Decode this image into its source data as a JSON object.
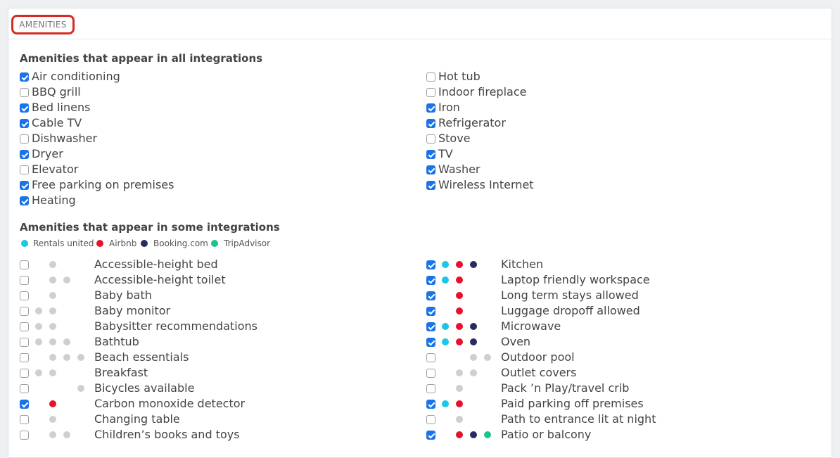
{
  "tab_label": "AMENITIES",
  "all_section": {
    "title": "Amenities that appear in all integrations",
    "left": [
      {
        "label": "Air conditioning",
        "checked": true
      },
      {
        "label": "BBQ grill",
        "checked": false
      },
      {
        "label": "Bed linens",
        "checked": true
      },
      {
        "label": "Cable TV",
        "checked": true
      },
      {
        "label": "Dishwasher",
        "checked": false
      },
      {
        "label": "Dryer",
        "checked": true
      },
      {
        "label": "Elevator",
        "checked": false
      },
      {
        "label": "Free parking on premises",
        "checked": true
      },
      {
        "label": "Heating",
        "checked": true
      }
    ],
    "right": [
      {
        "label": "Hot tub",
        "checked": false
      },
      {
        "label": "Indoor fireplace",
        "checked": false
      },
      {
        "label": "Iron",
        "checked": true
      },
      {
        "label": "Refrigerator",
        "checked": true
      },
      {
        "label": "Stove",
        "checked": false
      },
      {
        "label": "TV",
        "checked": true
      },
      {
        "label": "Washer",
        "checked": true
      },
      {
        "label": "Wireless Internet",
        "checked": true
      }
    ]
  },
  "some_section": {
    "title": "Amenities that appear in some integrations",
    "legend": [
      {
        "key": "r",
        "label": "Rentals united",
        "color": "#1bc6e6"
      },
      {
        "key": "a",
        "label": "Airbnb",
        "color": "#e8102b"
      },
      {
        "key": "b",
        "label": "Booking.com",
        "color": "#262b61"
      },
      {
        "key": "t",
        "label": "TripAdvisor",
        "color": "#1ac58c"
      }
    ],
    "inactive_color": "#cfcfcf",
    "left": [
      {
        "label": "Accessible-height bed",
        "checked": false,
        "dots": [
          null,
          "i",
          null,
          null
        ]
      },
      {
        "label": "Accessible-height toilet",
        "checked": false,
        "dots": [
          null,
          "i",
          "i",
          null
        ]
      },
      {
        "label": "Baby bath",
        "checked": false,
        "dots": [
          null,
          "i",
          null,
          null
        ]
      },
      {
        "label": "Baby monitor",
        "checked": false,
        "dots": [
          "i",
          "i",
          null,
          null
        ]
      },
      {
        "label": "Babysitter recommendations",
        "checked": false,
        "dots": [
          "i",
          "i",
          null,
          null
        ]
      },
      {
        "label": "Bathtub",
        "checked": false,
        "dots": [
          "i",
          "i",
          "i",
          null
        ]
      },
      {
        "label": "Beach essentials",
        "checked": false,
        "dots": [
          null,
          "i",
          "i",
          "i"
        ]
      },
      {
        "label": "Breakfast",
        "checked": false,
        "dots": [
          "i",
          "i",
          null,
          null
        ]
      },
      {
        "label": "Bicycles available",
        "checked": false,
        "dots": [
          null,
          null,
          null,
          "i"
        ]
      },
      {
        "label": "Carbon monoxide detector",
        "checked": true,
        "dots": [
          null,
          "a",
          null,
          null
        ]
      },
      {
        "label": "Changing table",
        "checked": false,
        "dots": [
          null,
          "i",
          null,
          null
        ]
      },
      {
        "label": "Children’s books and toys",
        "checked": false,
        "dots": [
          null,
          "i",
          "i",
          null
        ]
      }
    ],
    "right": [
      {
        "label": "Kitchen",
        "checked": true,
        "dots": [
          "r",
          "a",
          "b",
          null
        ]
      },
      {
        "label": "Laptop friendly workspace",
        "checked": true,
        "dots": [
          "r",
          "a",
          null,
          null
        ]
      },
      {
        "label": "Long term stays allowed",
        "checked": true,
        "dots": [
          null,
          "a",
          null,
          null
        ]
      },
      {
        "label": "Luggage dropoff allowed",
        "checked": true,
        "dots": [
          null,
          "a",
          null,
          null
        ]
      },
      {
        "label": "Microwave",
        "checked": true,
        "dots": [
          "r",
          "a",
          "b",
          null
        ]
      },
      {
        "label": "Oven",
        "checked": true,
        "dots": [
          "r",
          "a",
          "b",
          null
        ]
      },
      {
        "label": "Outdoor pool",
        "checked": false,
        "dots": [
          null,
          null,
          "i",
          "i"
        ]
      },
      {
        "label": "Outlet covers",
        "checked": false,
        "dots": [
          null,
          "i",
          "i",
          null
        ]
      },
      {
        "label": "Pack ’n Play/travel crib",
        "checked": false,
        "dots": [
          null,
          "i",
          null,
          null
        ]
      },
      {
        "label": "Paid parking off premises",
        "checked": true,
        "dots": [
          "r",
          "a",
          null,
          null
        ]
      },
      {
        "label": "Path to entrance lit at night",
        "checked": false,
        "dots": [
          null,
          "i",
          null,
          null
        ]
      },
      {
        "label": "Patio or balcony",
        "checked": true,
        "dots": [
          null,
          "a",
          "b",
          "t"
        ]
      }
    ]
  }
}
